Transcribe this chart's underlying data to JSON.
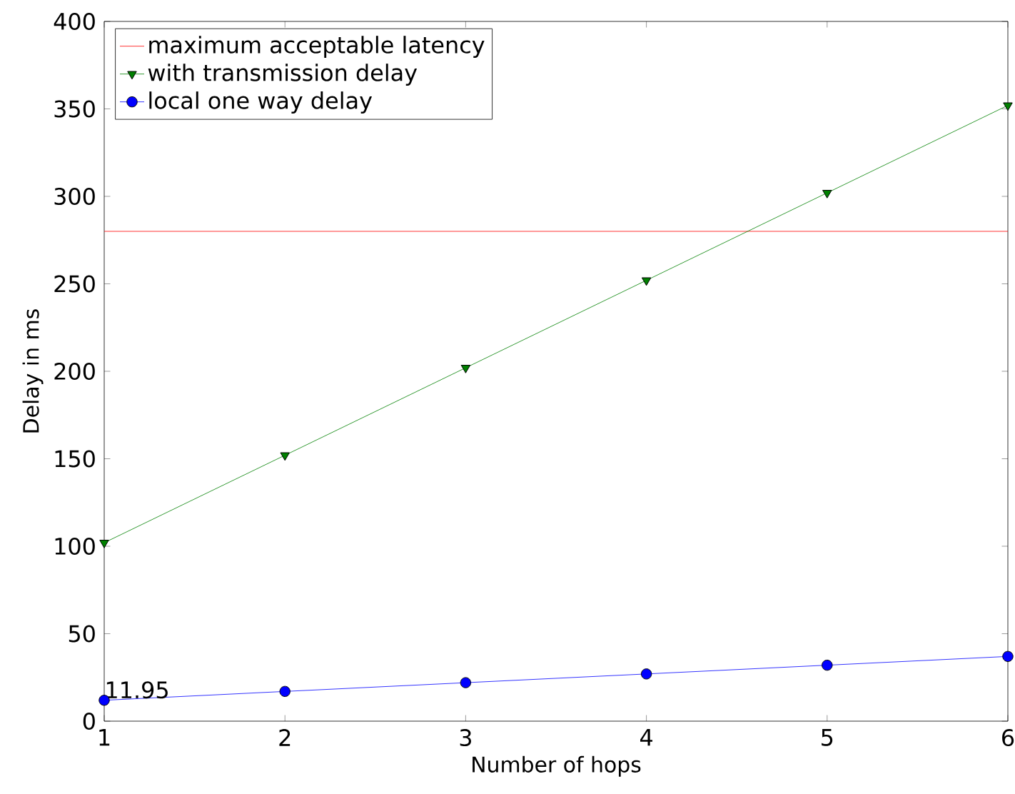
{
  "chart_data": {
    "type": "line",
    "xlabel": "Number of hops",
    "ylabel": "Delay in ms",
    "x": [
      1,
      2,
      3,
      4,
      5,
      6
    ],
    "series": [
      {
        "name": "with transmission delay",
        "color": "#008000",
        "marker": "triangle",
        "values": [
          102,
          152,
          202,
          252,
          302,
          352
        ]
      },
      {
        "name": "local one way delay",
        "color": "#0000ff",
        "marker": "circle",
        "values": [
          11.95,
          17,
          22,
          27,
          32,
          37
        ]
      }
    ],
    "ref_lines": [
      {
        "axis": "y",
        "value": 280,
        "label": "maximum acceptable latency",
        "color": "#ff0000"
      }
    ],
    "annotations": [
      {
        "text": "11.95",
        "x": 1,
        "y": 11.95
      }
    ],
    "xlim": [
      1,
      6
    ],
    "ylim": [
      0,
      400
    ],
    "xticks": [
      1,
      2,
      3,
      4,
      5,
      6
    ],
    "yticks": [
      0,
      50,
      100,
      150,
      200,
      250,
      300,
      350,
      400
    ],
    "grid": false,
    "legend": "top left",
    "line_style": "solid"
  }
}
